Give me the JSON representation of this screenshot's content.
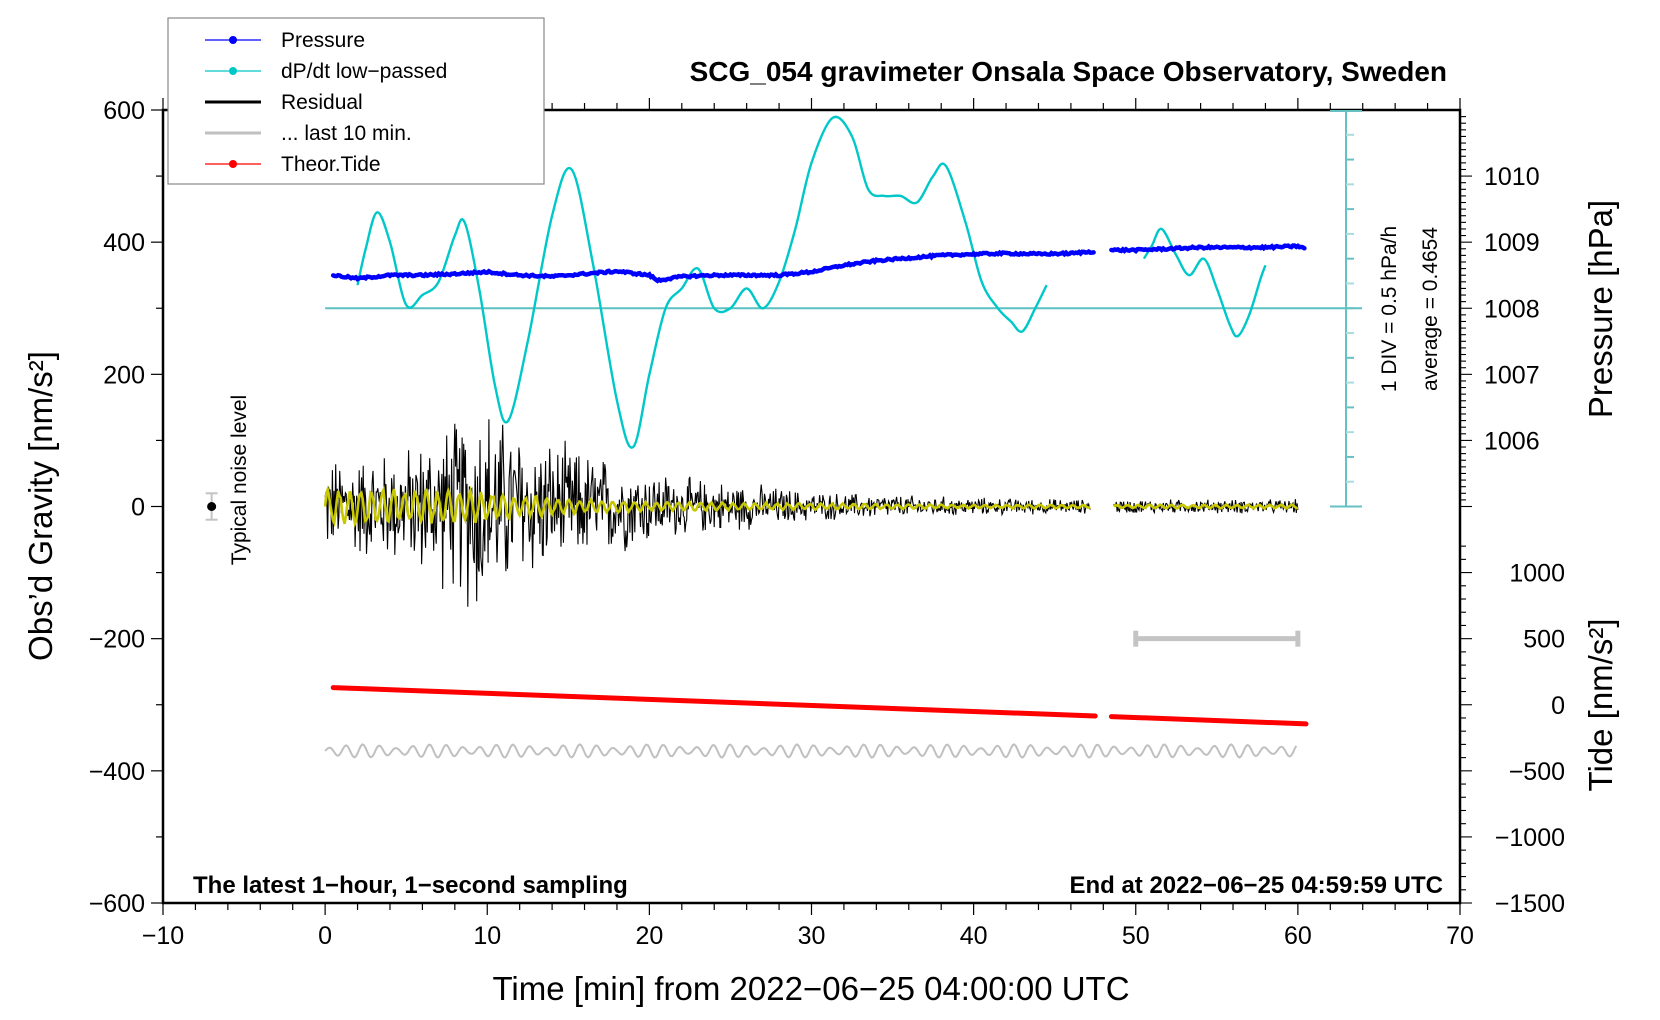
{
  "chart_data": {
    "type": "line",
    "title": "SCG_054 gravimeter Onsala Space Observatory, Sweden",
    "xlabel": "Time [min] from 2022−06−25 04:00:00 UTC",
    "ylabel_left": "Obs’d Gravity [nm/s²]",
    "ylabel_right_upper": "Pressure [hPa]",
    "ylabel_right_lower": "Tide [nm/s²]",
    "xlim": [
      -10,
      70
    ],
    "ylim": [
      -600,
      600
    ],
    "x_ticks": [
      "−10",
      "0",
      "10",
      "20",
      "30",
      "40",
      "50",
      "60",
      "70"
    ],
    "x_tick_values": [
      -10,
      0,
      10,
      20,
      30,
      40,
      50,
      60,
      70
    ],
    "y_ticks": [
      "−600",
      "−400",
      "−200",
      "0",
      "200",
      "400",
      "600"
    ],
    "y_tick_values": [
      -600,
      -400,
      -200,
      0,
      200,
      400,
      600
    ],
    "pressure_axis": {
      "ticks": [
        "1006",
        "1007",
        "1008",
        "1009",
        "1010"
      ],
      "tick_values": [
        1006,
        1007,
        1008,
        1009,
        1010
      ],
      "gravity_equiv_of_1008": 300,
      "gravity_per_hpa": 100
    },
    "tide_axis": {
      "ticks": [
        "−1500",
        "−1000",
        "−500",
        "0",
        "500",
        "1000"
      ],
      "tick_values": [
        -1500,
        -1000,
        -500,
        0,
        500,
        1000
      ],
      "gravity_at_zero": -300,
      "tide_per_gravity": 5
    },
    "dpdt_axis": {
      "label": "1 DIV = 0.5 hPa/h",
      "average_label": "average = 0.4654",
      "div_value": 0.5,
      "average": 0.4654,
      "baseline_gravity": 300,
      "gravity_per_div": 37.5,
      "divisions": 8
    },
    "legend": {
      "placement": "top-left",
      "entries": [
        {
          "label": "Pressure",
          "color": "#0000ff",
          "marker": true
        },
        {
          "label": "dP/dt low−passed",
          "color": "#00c8c8",
          "marker": true
        },
        {
          "label": "Residual",
          "color": "#000000",
          "marker": false
        },
        {
          "label": "... last 10 min.",
          "color": "#c0c0c0",
          "marker": false
        },
        {
          "label": "Theor.Tide",
          "color": "#ff0000",
          "marker": true
        }
      ]
    },
    "annotations": {
      "bottom_left": "The latest 1−hour, 1−second sampling",
      "bottom_right": "End at 2022−06−25 04:59:59 UTC",
      "noise_label": "Typical noise level",
      "noise_marker": {
        "x": -7,
        "y": 0,
        "err": 20
      },
      "last10_bar": {
        "x_start": 50,
        "x_end": 60,
        "y": -200
      }
    },
    "series": [
      {
        "name": "Pressure",
        "unit": "hPa",
        "color": "#0000ff",
        "segments": [
          {
            "x": [
              0.5,
              2,
              4,
              6,
              8,
              10,
              12,
              14,
              16,
              18,
              20,
              20.5,
              22,
              24,
              26,
              28,
              30,
              32,
              34,
              36,
              38,
              40,
              42,
              44,
              46,
              47.5
            ],
            "y": [
              1008.5,
              1008.45,
              1008.5,
              1008.5,
              1008.52,
              1008.55,
              1008.5,
              1008.48,
              1008.52,
              1008.56,
              1008.5,
              1008.42,
              1008.48,
              1008.5,
              1008.5,
              1008.5,
              1008.55,
              1008.65,
              1008.72,
              1008.76,
              1008.8,
              1008.82,
              1008.83,
              1008.82,
              1008.83,
              1008.86
            ]
          },
          {
            "x": [
              48.5,
              50,
              52,
              54,
              56,
              58,
              60,
              60.5
            ],
            "y": [
              1008.88,
              1008.88,
              1008.9,
              1008.92,
              1008.92,
              1008.92,
              1008.94,
              1008.9
            ]
          }
        ]
      },
      {
        "name": "dP/dt low-passed",
        "unit": "gravity-equivalent (baseline 300)",
        "color": "#00c8c8",
        "segments": [
          {
            "x": [
              2,
              2.5,
              3.2,
              4,
              5,
              6,
              7,
              8,
              8.6,
              9.5,
              10.5,
              11.3,
              12.5,
              14,
              15.2,
              16.5,
              18,
              19,
              20,
              21,
              22,
              23,
              24,
              25,
              26,
              27,
              28,
              29,
              30,
              31.3,
              32.5,
              33.5,
              34.5,
              35.5,
              36.5,
              37.5,
              38.3,
              39.5,
              40.5,
              41.5,
              42.3,
              43,
              43.8,
              44.5
            ],
            "y": [
              335,
              390,
              445,
              400,
              305,
              320,
              340,
              410,
              430,
              330,
              180,
              130,
              250,
              440,
              510,
              370,
              160,
              90,
              200,
              300,
              330,
              360,
              300,
              300,
              330,
              300,
              340,
              420,
              520,
              588,
              560,
              480,
              470,
              470,
              460,
              500,
              515,
              430,
              340,
              300,
              280,
              265,
              300,
              335
            ]
          },
          {
            "x": [
              50.5,
              51,
              51.6,
              52.5,
              53.3,
              54.2,
              55,
              55.8,
              56.3,
              57,
              57.7,
              58
            ],
            "y": [
              375,
              395,
              420,
              380,
              350,
              375,
              330,
              275,
              258,
              290,
              345,
              365
            ]
          }
        ]
      },
      {
        "name": "Residual",
        "color": "#000000",
        "envelope": {
          "x": [
            0,
            5,
            8,
            9.5,
            11,
            14,
            18,
            22,
            26,
            30,
            35,
            40,
            47,
            48.5,
            60
          ],
          "amp": [
            80,
            100,
            150,
            200,
            150,
            110,
            80,
            50,
            40,
            25,
            20,
            15,
            12,
            12,
            12
          ]
        },
        "gap": [
          47.2,
          48.6
        ]
      },
      {
        "name": "Residual low-passed",
        "color": "#c8c800",
        "envelope": {
          "x": [
            0,
            5,
            10,
            15,
            20,
            30,
            40,
            60
          ],
          "amp": [
            30,
            28,
            25,
            12,
            8,
            5,
            3,
            3
          ]
        }
      },
      {
        "name": "Theor.Tide",
        "unit": "nm/s² (tide axis)",
        "color": "#ff0000",
        "segments": [
          {
            "x": [
              0.5,
              47.5
            ],
            "y": [
              130,
              -85
            ]
          },
          {
            "x": [
              48.5,
              60.5
            ],
            "y": [
              -90,
              -145
            ]
          }
        ]
      },
      {
        "name": "... last 10 min.",
        "color": "#c0c0c0",
        "baseline": -370,
        "amp": 10,
        "x_range": [
          0,
          60
        ]
      }
    ]
  }
}
